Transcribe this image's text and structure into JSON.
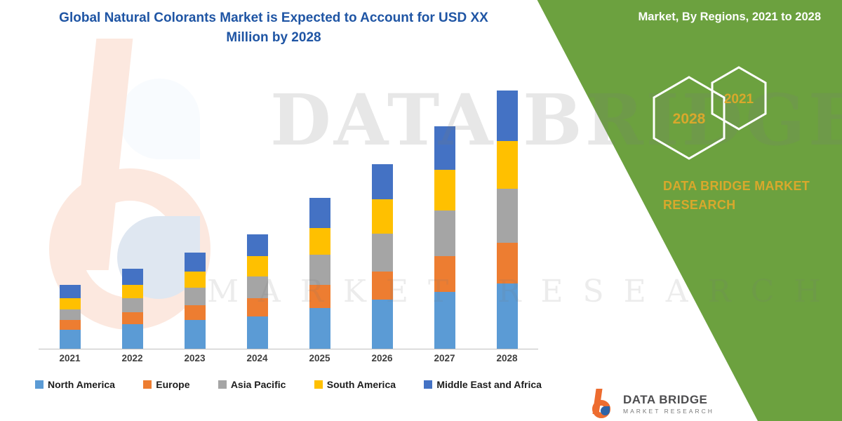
{
  "colors": {
    "green_panel": "#6CA13F",
    "title_blue": "#1F55A4",
    "gold": "#D9A82C",
    "axis_gray": "#BFBFBF",
    "logo_orange": "#ED6C2F",
    "logo_blue": "#2D63A7",
    "logo_text": "#4D4D4F"
  },
  "side_panel": {
    "heading": "Market, By Regions, 2021 to 2028",
    "hexagons": [
      "2028",
      "2021"
    ],
    "brand": "DATA BRIDGE MARKET RESEARCH"
  },
  "watermark": {
    "line1": "DATA BRIDGE",
    "line2": "MARKET RESEARCH"
  },
  "footer_logo": {
    "brand": "DATA BRIDGE",
    "subtitle": "MARKET RESEARCH"
  },
  "chart_data": {
    "type": "bar",
    "stacked": true,
    "title": "Global Natural Colorants Market is Expected to Account for USD XX Million by 2028",
    "unit": "USD Million",
    "categories": [
      "2021",
      "2022",
      "2023",
      "2024",
      "2025",
      "2026",
      "2027",
      "2028"
    ],
    "series": [
      {
        "name": "North America",
        "color": "#5B9BD5",
        "values": [
          7,
          9,
          10.5,
          12,
          15,
          18,
          21,
          24
        ]
      },
      {
        "name": "Europe",
        "color": "#ED7D31",
        "values": [
          3.5,
          4.5,
          5.5,
          6.5,
          8.5,
          10.5,
          13,
          15
        ]
      },
      {
        "name": "Asia Pacific",
        "color": "#A5A5A5",
        "values": [
          4,
          5,
          6.5,
          8,
          11,
          14,
          17,
          20
        ]
      },
      {
        "name": "South America",
        "color": "#FFC000",
        "values": [
          4,
          5,
          6,
          7.5,
          10,
          12.5,
          15,
          17.5
        ]
      },
      {
        "name": "Middle East and Africa",
        "color": "#4472C4",
        "values": [
          5,
          6,
          7,
          8,
          11,
          13,
          16,
          18.5
        ]
      }
    ],
    "ylim": [
      0,
      100
    ],
    "grid": false,
    "legend_position": "bottom",
    "value_labels_shown": false
  }
}
